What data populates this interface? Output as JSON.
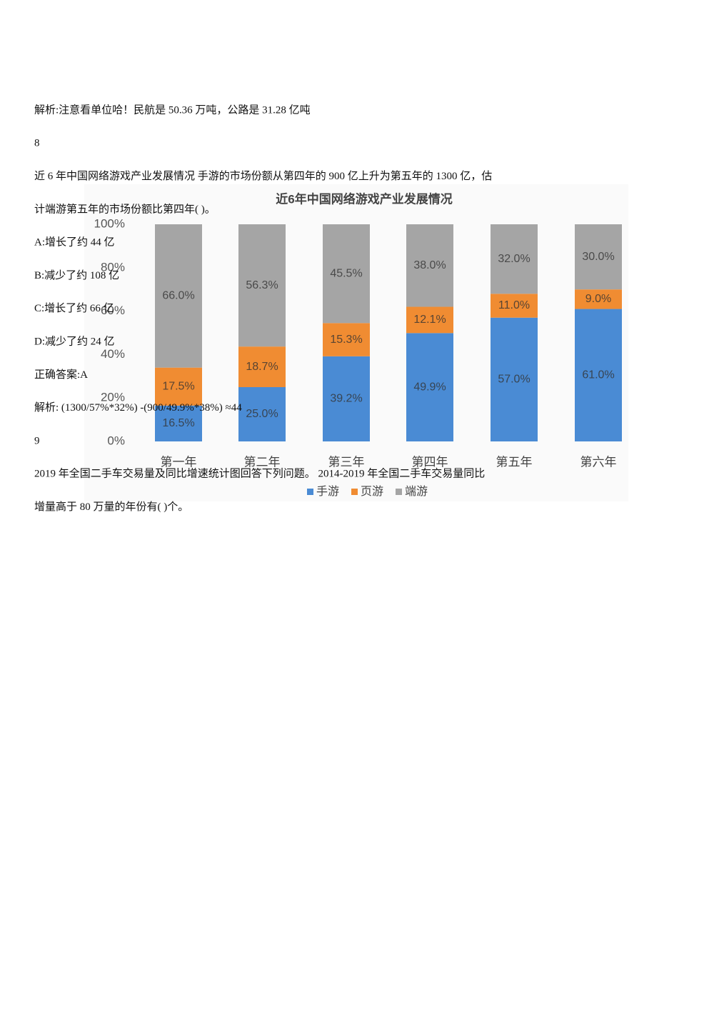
{
  "lines": [
    "解析:注意看单位哈！民航是 50.36 万吨，公路是 31.28 亿吨",
    "8",
    "近 6 年中国网络游戏产业发展情况 手游的市场份额从第四年的 900 亿上升为第五年的 1300 亿，估",
    "计端游第五年的市场份额比第四年( )。",
    "A:增长了约 44 亿",
    "B:减少了约 108 亿",
    "C:增长了约 66 亿",
    "D:减少了约 24 亿",
    "正确答案:A",
    "解析: (1300/57%*32%) -(900/49.9%*38%) ≈44",
    "9",
    "2019 年全国二手车交易量及同比增速统计图回答下列问题。 2014-2019 年全国二手车交易量同比",
    "增量高于 80 万量的年份有( )个。"
  ],
  "chart_data": {
    "type": "stacked-bar",
    "title": "近6年中国网络游戏产业发展情况",
    "categories": [
      "第一年",
      "第二年",
      "第三年",
      "第四年",
      "第五年",
      "第六年"
    ],
    "series": [
      {
        "name": "手游",
        "color": "#4a8bd4",
        "values": [
          16.5,
          25.0,
          39.2,
          49.9,
          57.0,
          61.0
        ],
        "value_labels": [
          "16.5%",
          "25.0%",
          "39.2%",
          "49.9%",
          "57.0%",
          "61.0%"
        ]
      },
      {
        "name": "页游",
        "color": "#f08c32",
        "values": [
          17.5,
          18.7,
          15.3,
          12.1,
          11.0,
          9.0
        ],
        "value_labels": [
          "17.5%",
          "18.7%",
          "15.3%",
          "12.1%",
          "11.0%",
          "9.0%"
        ]
      },
      {
        "name": "端游",
        "color": "#a5a5a5",
        "values": [
          66.0,
          56.3,
          45.5,
          38.0,
          32.0,
          30.0
        ],
        "value_labels": [
          "66.0%",
          "56.3%",
          "45.5%",
          "38.0%",
          "32.0%",
          "30.0%"
        ]
      }
    ],
    "ylim": [
      0,
      100
    ],
    "yticks": [
      {
        "value": 0,
        "label": "0%"
      },
      {
        "value": 20,
        "label": "20%"
      },
      {
        "value": 40,
        "label": "40%"
      },
      {
        "value": 60,
        "label": "60%"
      },
      {
        "value": 80,
        "label": "80%"
      },
      {
        "value": 100,
        "label": "100%"
      }
    ]
  }
}
